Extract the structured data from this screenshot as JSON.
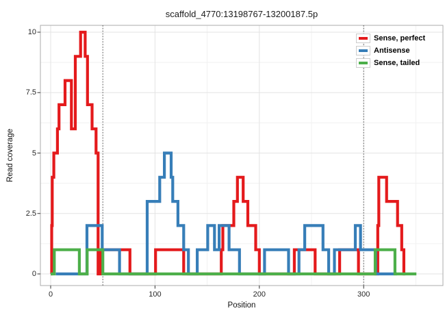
{
  "figure": {
    "title": "scaffold_4770:13198767-13200187.5p"
  },
  "chart_data": {
    "type": "line",
    "subtype": "step",
    "title": "scaffold_4770:13198767-13200187.5p",
    "xlabel": "Position",
    "ylabel": "Read coverage",
    "x_ticks": [
      "0",
      "100",
      "200",
      "300"
    ],
    "x_tick_values": [
      0,
      100,
      200,
      300
    ],
    "y_ticks": [
      "0",
      "2.5",
      "5",
      "7.5",
      "10"
    ],
    "y_tick_values": [
      0,
      2.5,
      5,
      7.5,
      10
    ],
    "x_minor": [
      50,
      150,
      250,
      350
    ],
    "y_minor": [
      1.25,
      3.75,
      6.25,
      8.75
    ],
    "xlim": [
      -10,
      376
    ],
    "ylim": [
      -0.5,
      10.3
    ],
    "grid": true,
    "panel_border_color": "#ababab",
    "grid_major_color": "#e3e3e3",
    "grid_minor_color": "#f1f1f1",
    "legend_position": "top-right-inside",
    "vlines": {
      "positions": [
        50,
        300
      ],
      "style": "dotted",
      "color": "#4d4d4d"
    },
    "series": [
      {
        "name": "Sense, perfect",
        "color": "#E41A1C",
        "end": 340,
        "steps": [
          [
            0,
            0
          ],
          [
            1,
            2
          ],
          [
            1.5,
            4
          ],
          [
            3,
            5
          ],
          [
            6.5,
            6
          ],
          [
            8,
            7
          ],
          [
            13.8,
            8
          ],
          [
            19.9,
            6
          ],
          [
            23.6,
            9
          ],
          [
            28.7,
            10
          ],
          [
            33.1,
            9
          ],
          [
            35.3,
            7
          ],
          [
            39.7,
            6
          ],
          [
            43.5,
            5
          ],
          [
            45.5,
            0
          ],
          [
            47.5,
            1
          ],
          [
            76,
            0
          ],
          [
            100.5,
            1
          ],
          [
            127.5,
            0
          ],
          [
            163.5,
            1
          ],
          [
            165,
            2
          ],
          [
            175.5,
            3
          ],
          [
            179,
            4
          ],
          [
            184.5,
            3
          ],
          [
            189,
            2
          ],
          [
            196.5,
            1
          ],
          [
            200,
            0
          ],
          [
            233.5,
            1
          ],
          [
            253.5,
            0
          ],
          [
            277,
            1
          ],
          [
            295,
            0
          ],
          [
            313.5,
            2
          ],
          [
            314.5,
            4
          ],
          [
            322,
            3
          ],
          [
            332.5,
            2
          ],
          [
            336.5,
            1
          ],
          [
            338.5,
            0
          ]
        ]
      },
      {
        "name": "Antisense",
        "color": "#377EB8",
        "end": 332,
        "steps": [
          [
            5,
            0
          ],
          [
            34.8,
            2
          ],
          [
            49.4,
            1
          ],
          [
            66,
            0
          ],
          [
            92.5,
            3
          ],
          [
            104.5,
            4
          ],
          [
            109,
            5
          ],
          [
            115.5,
            4
          ],
          [
            117,
            3
          ],
          [
            122,
            2
          ],
          [
            127.5,
            1
          ],
          [
            132,
            0
          ],
          [
            140.5,
            1
          ],
          [
            150.5,
            2
          ],
          [
            157,
            1
          ],
          [
            161.5,
            2
          ],
          [
            171,
            1
          ],
          [
            181,
            0
          ],
          [
            205,
            1
          ],
          [
            228,
            0
          ],
          [
            238,
            1
          ],
          [
            243.5,
            2
          ],
          [
            261,
            1
          ],
          [
            266.5,
            0
          ],
          [
            272,
            1
          ],
          [
            292,
            2
          ],
          [
            297,
            1
          ],
          [
            311.5,
            0
          ]
        ]
      },
      {
        "name": "Sense, tailed",
        "color": "#4DAF4A",
        "end": 350.5,
        "steps": [
          [
            0,
            0
          ],
          [
            3.5,
            1
          ],
          [
            27.5,
            0
          ],
          [
            35,
            1
          ],
          [
            50,
            0
          ],
          [
            311,
            1
          ],
          [
            330,
            0
          ]
        ]
      }
    ]
  }
}
